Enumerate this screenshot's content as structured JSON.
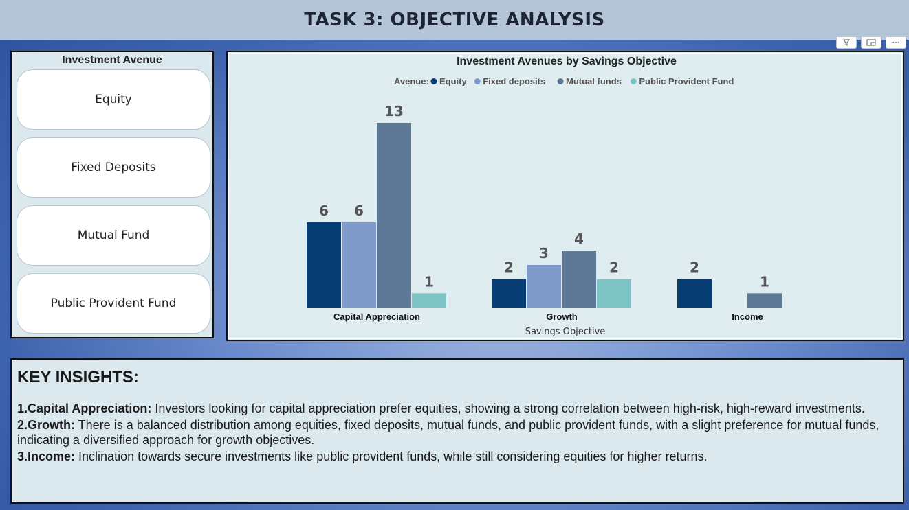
{
  "header": {
    "title": "TASK 3: OBJECTIVE ANALYSIS"
  },
  "visual_header": {
    "icons": [
      "filter-icon",
      "focus-mode-icon",
      "more-options-icon"
    ],
    "more_glyph": "⋯"
  },
  "slicer": {
    "title": "Investment Avenue",
    "items": [
      {
        "label": "Equity"
      },
      {
        "label": "Fixed Deposits"
      },
      {
        "label": "Mutual Fund"
      },
      {
        "label": "Public Provident Fund"
      }
    ]
  },
  "chart_data": {
    "type": "bar",
    "title": "Investment Avenues by Savings Objective",
    "xlabel": "Savings Objective",
    "ylabel": "",
    "legend_title": "Avenue:",
    "legend_position": "top-center",
    "grid": false,
    "ylim": [
      0,
      14
    ],
    "categories": [
      "Capital Appreciation",
      "Growth",
      "Income"
    ],
    "series": [
      {
        "name": "Equity",
        "color": "#073d73",
        "values": [
          6,
          2,
          2
        ]
      },
      {
        "name": "Fixed deposits",
        "color": "#7f99c9",
        "values": [
          6,
          3,
          null
        ]
      },
      {
        "name": "Mutual funds",
        "color": "#5c7895",
        "values": [
          13,
          4,
          1
        ]
      },
      {
        "name": "Public Provident Fund",
        "color": "#7fc4c4",
        "values": [
          1,
          2,
          null
        ]
      }
    ]
  },
  "insights": {
    "heading": "KEY INSIGHTS:",
    "items": [
      {
        "label": "1.Capital Appreciation:",
        "text": " Investors looking for capital appreciation prefer equities, showing a strong correlation between high-risk, high-reward investments."
      },
      {
        "label": "2.Growth:",
        "text": " There is a balanced distribution among equities, fixed deposits, mutual funds, and public provident funds, with a slight preference for mutual funds, indicating a diversified approach for growth objectives."
      },
      {
        "label": "3.Income:",
        "text": " Inclination towards secure investments like public provident funds, while still considering equities for higher returns."
      }
    ]
  }
}
